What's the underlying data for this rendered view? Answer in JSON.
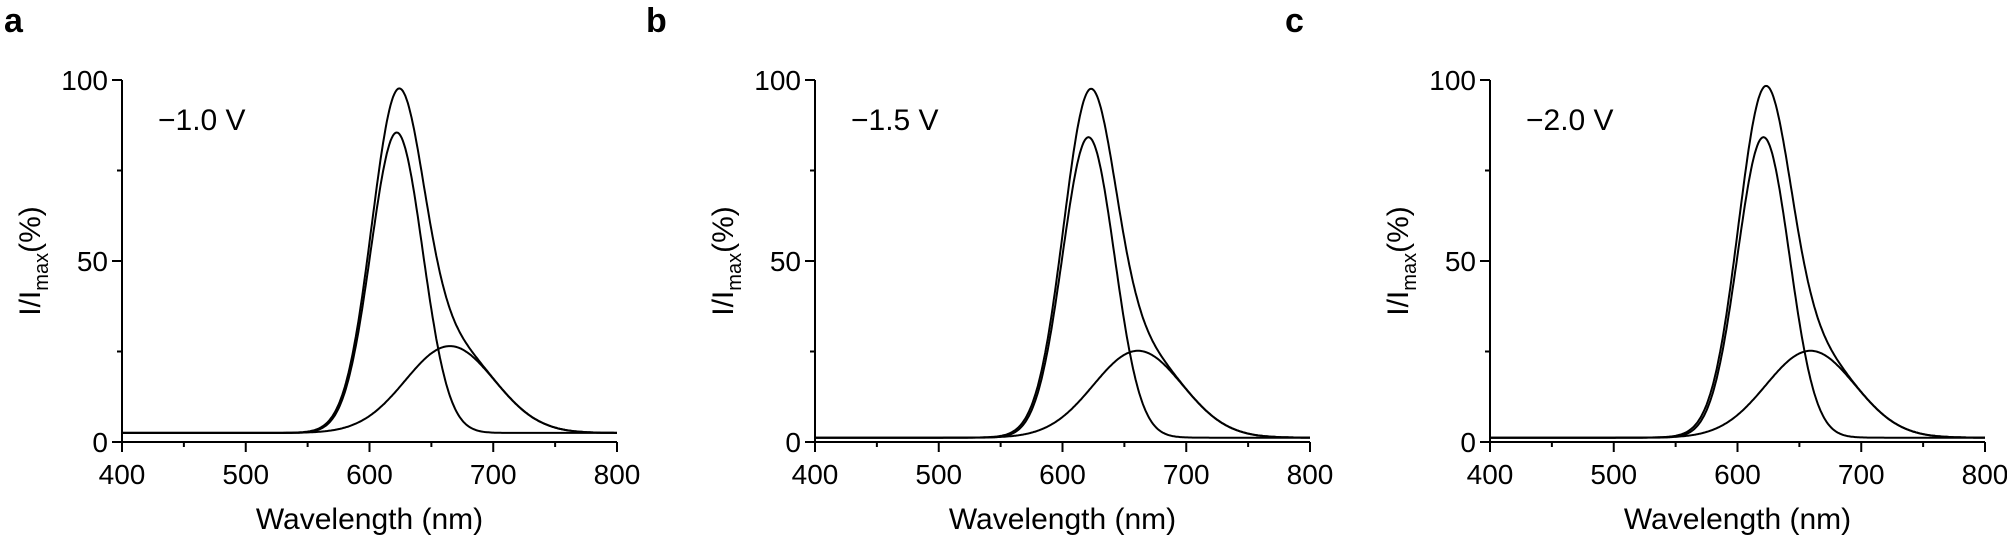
{
  "chart_data": [
    {
      "panel_label": "a",
      "type": "line",
      "annotation": "−1.0 V",
      "xlabel": "Wavelength (nm)",
      "ylabel": {
        "main": "I/I",
        "sub": "max",
        "suffix": "(%)"
      },
      "xlim": [
        400,
        800
      ],
      "ylim": [
        0,
        100
      ],
      "xticks": [
        400,
        500,
        600,
        700,
        800
      ],
      "yticks": [
        0,
        50,
        100
      ],
      "grid": false,
      "baseline": 2.5,
      "series": [
        {
          "peak_nm": 622,
          "amplitude": 83,
          "width_nm": 21
        },
        {
          "peak_nm": 665,
          "amplitude": 24,
          "width_nm": 36
        },
        {
          "sum_of": [
            0,
            1
          ]
        }
      ]
    },
    {
      "panel_label": "b",
      "type": "line",
      "annotation": "−1.5 V",
      "xlabel": "Wavelength (nm)",
      "ylabel": {
        "main": "I/I",
        "sub": "max",
        "suffix": "(%)"
      },
      "xlim": [
        400,
        800
      ],
      "ylim": [
        0,
        100
      ],
      "xticks": [
        400,
        500,
        600,
        700,
        800
      ],
      "yticks": [
        0,
        50,
        100
      ],
      "grid": false,
      "baseline": 1.2,
      "series": [
        {
          "peak_nm": 621,
          "amplitude": 83,
          "width_nm": 21
        },
        {
          "peak_nm": 661,
          "amplitude": 24,
          "width_nm": 36
        },
        {
          "sum_of": [
            0,
            1
          ]
        }
      ]
    },
    {
      "panel_label": "c",
      "type": "line",
      "annotation": "−2.0 V",
      "xlabel": "Wavelength (nm)",
      "ylabel": {
        "main": "I/I",
        "sub": "max",
        "suffix": "(%)"
      },
      "xlim": [
        400,
        800
      ],
      "ylim": [
        0,
        100
      ],
      "xticks": [
        400,
        500,
        600,
        700,
        800
      ],
      "yticks": [
        0,
        50,
        100
      ],
      "grid": false,
      "baseline": 1.2,
      "series": [
        {
          "peak_nm": 621,
          "amplitude": 83,
          "width_nm": 21
        },
        {
          "peak_nm": 659,
          "amplitude": 24,
          "width_nm": 36
        },
        {
          "sum_of": [
            0,
            1
          ]
        }
      ]
    }
  ]
}
